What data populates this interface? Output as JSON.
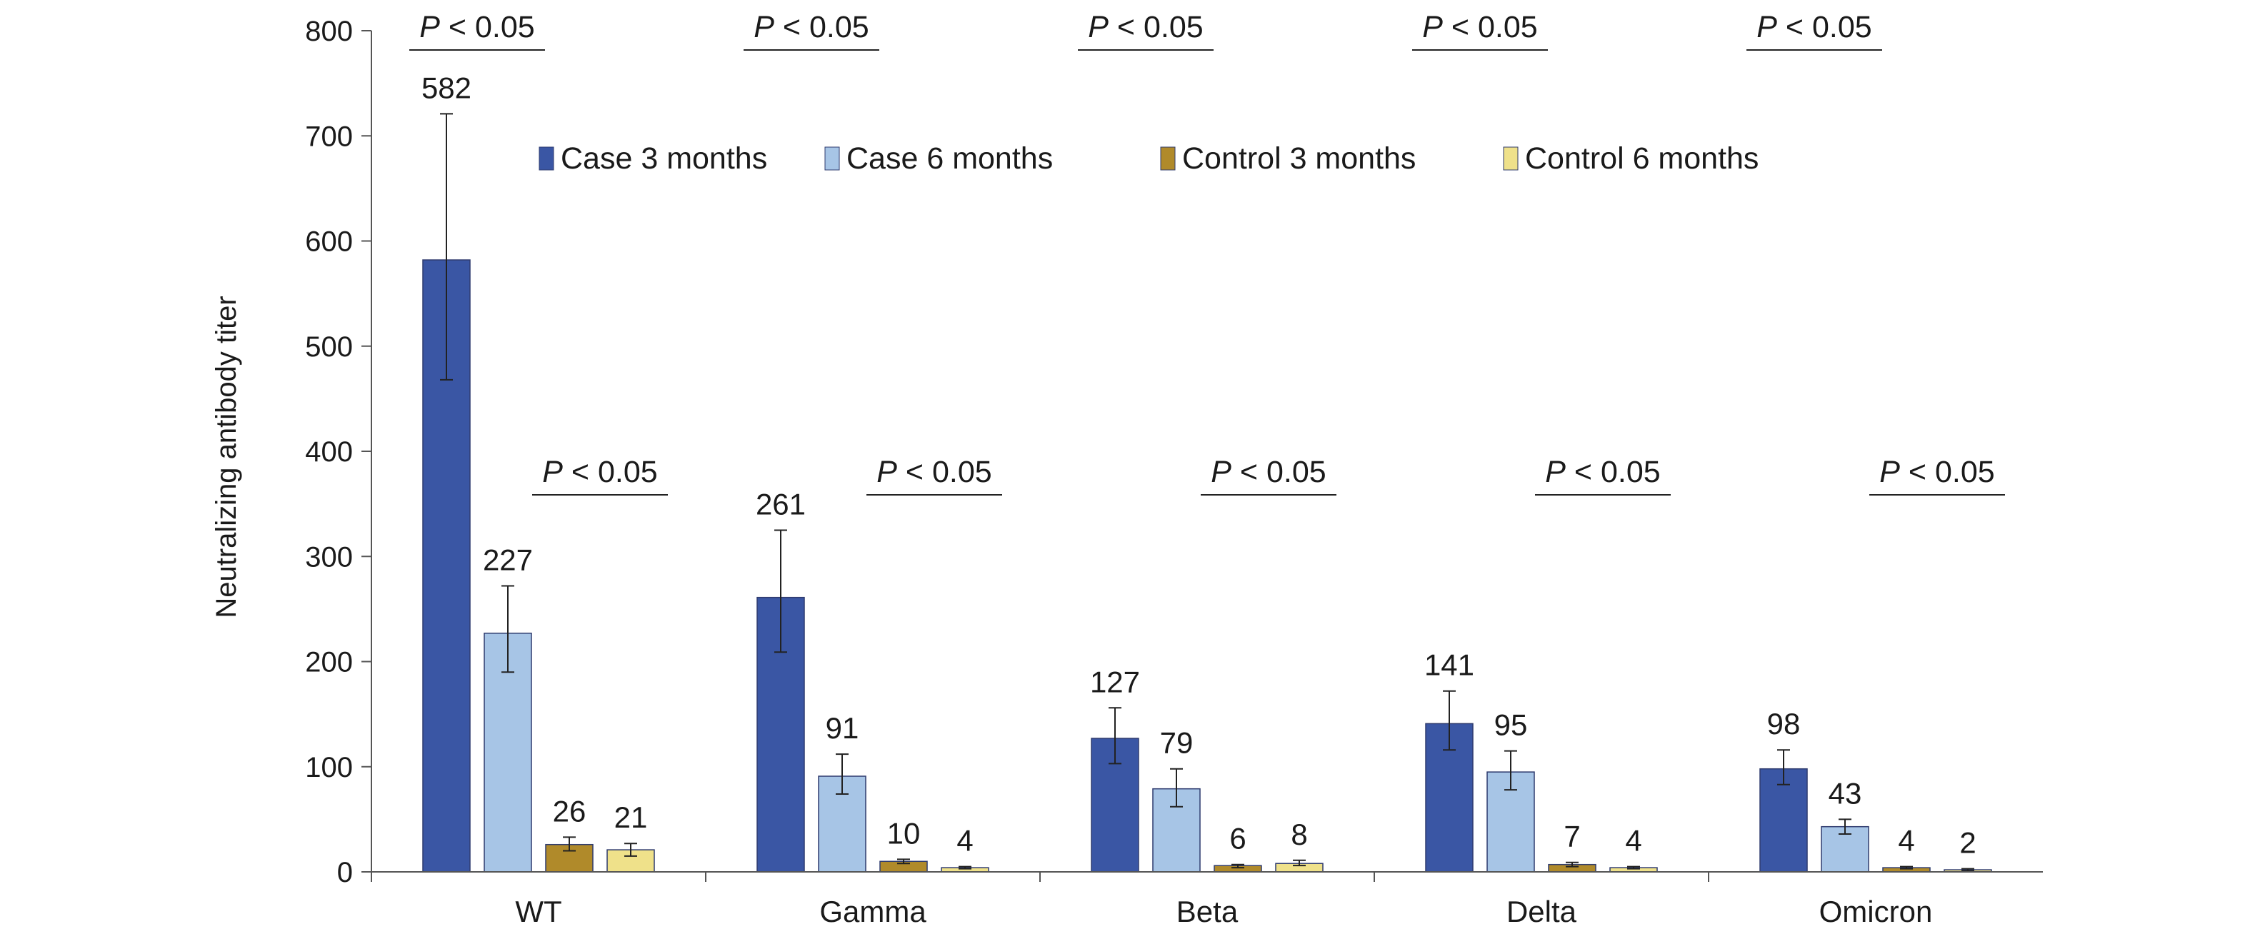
{
  "chart_data": {
    "type": "bar",
    "ylabel": "Neutralizing antibody titer",
    "ylim": [
      0,
      800
    ],
    "yticks": [
      0,
      100,
      200,
      300,
      400,
      500,
      600,
      700,
      800
    ],
    "categories": [
      "WT",
      "Gamma",
      "Beta",
      "Delta",
      "Omicron"
    ],
    "series": [
      {
        "name": "Case 3 months",
        "color": "#3a56a4",
        "values": [
          582,
          261,
          127,
          141,
          98
        ],
        "err_low": [
          468,
          209,
          103,
          116,
          83
        ],
        "err_high": [
          721,
          325,
          156,
          172,
          116
        ]
      },
      {
        "name": "Case 6 months",
        "color": "#a7c5e6",
        "values": [
          227,
          91,
          79,
          95,
          43
        ],
        "err_low": [
          190,
          74,
          62,
          78,
          36
        ],
        "err_high": [
          272,
          112,
          98,
          115,
          50
        ]
      },
      {
        "name": "Control 3 months",
        "color": "#b08a2a",
        "values": [
          26,
          10,
          6,
          7,
          4
        ],
        "err_low": [
          20,
          8,
          4,
          5,
          3
        ],
        "err_high": [
          33,
          12,
          7,
          9,
          5
        ]
      },
      {
        "name": "Control 6 months",
        "color": "#efe18a",
        "values": [
          21,
          4,
          8,
          4,
          2
        ],
        "err_low": [
          15,
          3,
          6,
          3,
          1
        ],
        "err_high": [
          27,
          5,
          11,
          5,
          3
        ]
      }
    ],
    "data_labels": [
      [
        "582",
        "261",
        "127",
        "141",
        "98"
      ],
      [
        "227",
        "91",
        "79",
        "95",
        "43"
      ],
      [
        "26",
        "10",
        "6",
        "7",
        "4"
      ],
      [
        "21",
        "4",
        "8",
        "4",
        "2"
      ]
    ],
    "significance": {
      "top_p": "< 0.05",
      "bottom_p": "< 0.05",
      "p_letter": "P"
    },
    "legend_position": "top"
  }
}
